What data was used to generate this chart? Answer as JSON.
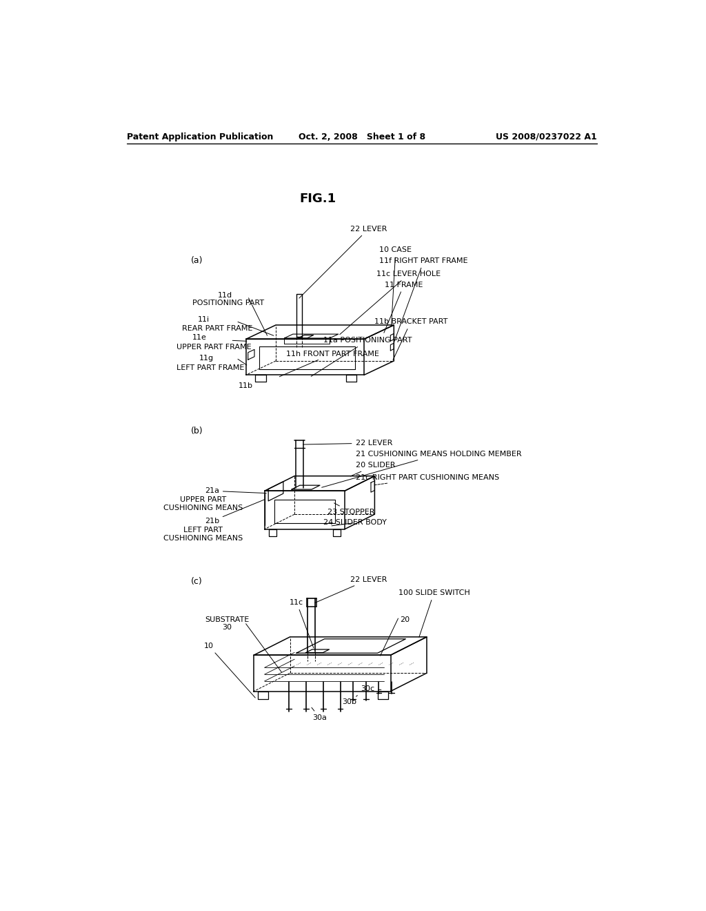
{
  "bg_color": "#ffffff",
  "header_left": "Patent Application Publication",
  "header_center": "Oct. 2, 2008   Sheet 1 of 8",
  "header_right": "US 2008/0237022 A1",
  "fig_title": "FIG.1"
}
